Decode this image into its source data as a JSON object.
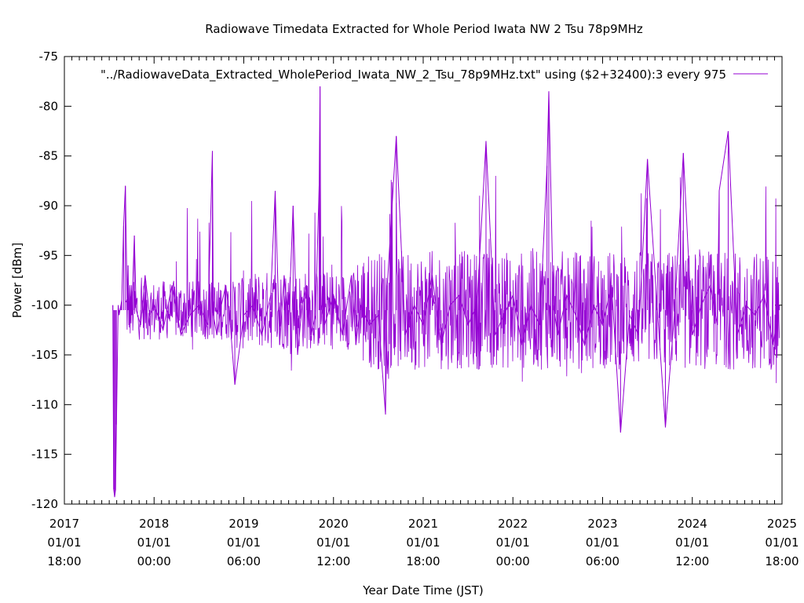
{
  "chart_data": {
    "type": "line",
    "title": "Radiowave Timedata Extracted for Whole Period Iwata NW 2 Tsu 78p9MHz",
    "xlabel": "Year Date Time (JST)",
    "ylabel": "Power [dBm]",
    "ylim": [
      -120,
      -75
    ],
    "yticks": [
      "-75",
      "-80",
      "-85",
      "-90",
      "-95",
      "-100",
      "-105",
      "-110",
      "-115",
      "-120"
    ],
    "xlim": [
      2017.0,
      2025.0
    ],
    "xticks": [
      {
        "year": "2017",
        "date": "01/01",
        "time": "18:00"
      },
      {
        "year": "2018",
        "date": "01/01",
        "time": "00:00"
      },
      {
        "year": "2019",
        "date": "01/01",
        "time": "06:00"
      },
      {
        "year": "2020",
        "date": "01/01",
        "time": "12:00"
      },
      {
        "year": "2021",
        "date": "01/01",
        "time": "18:00"
      },
      {
        "year": "2022",
        "date": "01/01",
        "time": "00:00"
      },
      {
        "year": "2023",
        "date": "01/01",
        "time": "06:00"
      },
      {
        "year": "2024",
        "date": "01/01",
        "time": "12:00"
      },
      {
        "year": "2025",
        "date": "01/01",
        "time": "18:00"
      }
    ],
    "series": [
      {
        "name": "\"../RadiowaveData_Extracted_WholePeriod_Iwata_NW_2_Tsu_78p9MHz.txt\" using ($2+32400):3 every 975",
        "color": "#9400d3",
        "x": [
          2017.54,
          2017.55,
          2017.56,
          2017.57,
          2017.58,
          2017.6,
          2017.61,
          2017.62,
          2017.63,
          2017.64,
          2017.66,
          2017.68,
          2017.7,
          2017.71,
          2017.72,
          2017.73,
          2017.75,
          2017.78,
          2017.8,
          2017.85,
          2017.9,
          2017.95,
          2018.0,
          2018.1,
          2018.2,
          2018.3,
          2018.4,
          2018.5,
          2018.6,
          2018.65,
          2018.66,
          2018.7,
          2018.75,
          2018.8,
          2018.85,
          2018.9,
          2019.0,
          2019.1,
          2019.2,
          2019.3,
          2019.35,
          2019.4,
          2019.45,
          2019.5,
          2019.55,
          2019.6,
          2019.65,
          2019.7,
          2019.75,
          2019.8,
          2019.84,
          2019.85,
          2019.86,
          2019.9,
          2020.0,
          2020.1,
          2020.2,
          2020.25,
          2020.3,
          2020.4,
          2020.5,
          2020.58,
          2020.6,
          2020.7,
          2020.8,
          2020.9,
          2021.0,
          2021.1,
          2021.2,
          2021.3,
          2021.4,
          2021.5,
          2021.6,
          2021.7,
          2021.8,
          2021.9,
          2022.0,
          2022.1,
          2022.2,
          2022.3,
          2022.38,
          2022.4,
          2022.45,
          2022.5,
          2022.6,
          2022.7,
          2022.8,
          2022.9,
          2023.0,
          2023.1,
          2023.2,
          2023.3,
          2023.4,
          2023.5,
          2023.6,
          2023.7,
          2023.8,
          2023.9,
          2024.0,
          2024.1,
          2024.2,
          2024.28,
          2024.3,
          2024.4,
          2024.5,
          2024.6,
          2024.7,
          2024.8,
          2024.9,
          2024.97
        ],
        "y": [
          -100.0,
          -118.5,
          -119.3,
          -118.6,
          -112.0,
          -100.0,
          -101.0,
          -100.5,
          -100.0,
          -99.5,
          -92.0,
          -88.0,
          -100.0,
          -96.0,
          -102.0,
          -98.0,
          -101.0,
          -93.0,
          -100.5,
          -102.0,
          -97.0,
          -101.0,
          -100.0,
          -102.5,
          -98.0,
          -103.0,
          -101.0,
          -100.0,
          -102.0,
          -84.5,
          -101.0,
          -103.0,
          -100.0,
          -98.0,
          -102.0,
          -108.0,
          -101.0,
          -100.0,
          -103.0,
          -99.0,
          -88.5,
          -104.0,
          -97.0,
          -102.0,
          -90.0,
          -105.0,
          -100.0,
          -98.0,
          -103.0,
          -101.0,
          -88.0,
          -78.0,
          -100.0,
          -102.0,
          -99.0,
          -103.0,
          -97.0,
          -104.0,
          -100.0,
          -102.0,
          -101.0,
          -111.0,
          -98.0,
          -83.0,
          -103.0,
          -100.0,
          -102.0,
          -97.0,
          -104.0,
          -100.0,
          -99.0,
          -102.0,
          -100.0,
          -83.5,
          -103.0,
          -101.0,
          -99.0,
          -104.0,
          -100.0,
          -102.0,
          -86.0,
          -78.5,
          -100.0,
          -103.0,
          -99.0,
          -101.0,
          -104.0,
          -100.0,
          -102.0,
          -98.0,
          -112.8,
          -101.0,
          -103.0,
          -85.3,
          -99.0,
          -112.3,
          -101.0,
          -84.7,
          -103.0,
          -100.0,
          -98.0,
          -102.0,
          -88.5,
          -82.5,
          -103.0,
          -100.0,
          -101.0,
          -99.0,
          -104.0,
          -100.0
        ]
      }
    ],
    "legend_position": "top-right",
    "grid": false
  }
}
